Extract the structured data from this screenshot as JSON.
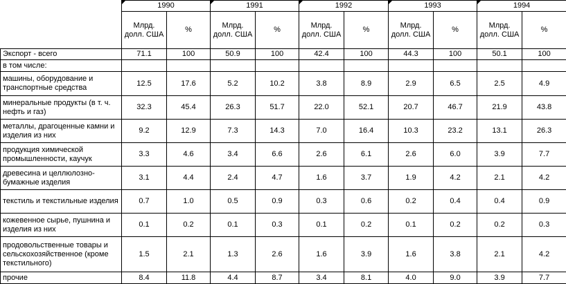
{
  "table": {
    "years": [
      "1990",
      "1991",
      "1992",
      "1993",
      "1994"
    ],
    "subheaders": [
      "Млрд. долл. США",
      "%"
    ],
    "rows": [
      {
        "label": "Экспорт - всего",
        "values": [
          "71.1",
          "100",
          "50.9",
          "100",
          "42.4",
          "100",
          "44.3",
          "100",
          "50.1",
          "100"
        ]
      },
      {
        "label": "в том числе:"
      },
      {
        "label": "машины, оборудование и транспортные средства",
        "values": [
          "12.5",
          "17.6",
          "5.2",
          "10.2",
          "3.8",
          "8.9",
          "2.9",
          "6.5",
          "2.5",
          "4.9"
        ]
      },
      {
        "label": "минеральные продукты (в т. ч. нефть и газ)",
        "values": [
          "32.3",
          "45.4",
          "26.3",
          "51.7",
          "22.0",
          "52.1",
          "20.7",
          "46.7",
          "21.9",
          "43.8"
        ]
      },
      {
        "label": "металлы, драгоценные камни и изделия из них",
        "values": [
          "9.2",
          "12.9",
          "7.3",
          "14.3",
          "7.0",
          "16.4",
          "10.3",
          "23.2",
          "13.1",
          "26.3"
        ]
      },
      {
        "label": "продукция химической промышленности, каучук",
        "values": [
          "3.3",
          "4.6",
          "3.4",
          "6.6",
          "2.6",
          "6.1",
          "2.6",
          "6.0",
          "3.9",
          "7.7"
        ]
      },
      {
        "label": "древесина и целлюлозно-бумажные изделия",
        "values": [
          "3.1",
          "4.4",
          "2.4",
          "4.7",
          "1.6",
          "3.7",
          "1.9",
          "4.2",
          "2.1",
          "4.2"
        ]
      },
      {
        "label": "текстиль и текстильные изделия",
        "values": [
          "0.7",
          "1.0",
          "0.5",
          "0.9",
          "0.3",
          "0.6",
          "0.2",
          "0.4",
          "0.4",
          "0.9"
        ]
      },
      {
        "label": "кожевенное сырье, пушнина и изделия из них",
        "values": [
          "0.1",
          "0.2",
          "0.1",
          "0.3",
          "0.1",
          "0.2",
          "0.1",
          "0.2",
          "0.2",
          "0.3"
        ]
      },
      {
        "label": "продовольственные товары и сельскохозяйственное (кроме текстильного)",
        "values": [
          "1.5",
          "2.1",
          "1.3",
          "2.6",
          "1.6",
          "3.9",
          "1.6",
          "3.8",
          "2.1",
          "4.2"
        ]
      },
      {
        "label": "прочие",
        "values": [
          "8.4",
          "11.8",
          "4.4",
          "8.7",
          "3.4",
          "8.1",
          "4.0",
          "9.0",
          "3.9",
          "7.7"
        ]
      }
    ]
  }
}
